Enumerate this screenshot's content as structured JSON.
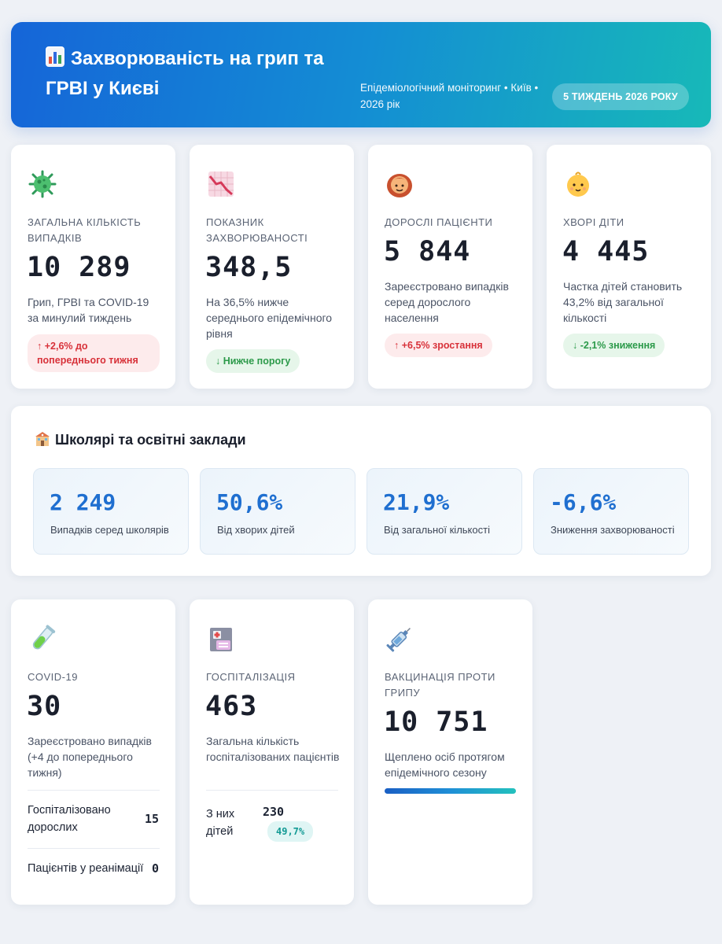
{
  "header": {
    "title": "Захворюваність на грип та ГРВІ у Києві",
    "meta": "Епідеміологічний моніторинг • Київ • 2026 рік",
    "badge": "5 ТИЖДЕНЬ 2026 РОКУ",
    "icon": "bar-chart-icon"
  },
  "top_cards": [
    {
      "icon": "virus-icon",
      "label": "Загальна кількість випадків",
      "value": "10 289",
      "desc": "Грип, ГРВІ та COVID-19 за минулий тиждень",
      "pill": "↑ +2,6% до попереднього тижня",
      "pill_color": "#d8323a"
    },
    {
      "icon": "chart-decreasing-icon",
      "label": "Показник захворюваності",
      "value": "348,5",
      "desc": "На 36,5% нижче середнього епідемічного рівня",
      "pill": "↓ Нижче порогу",
      "pill_color": "#2c9a4a"
    },
    {
      "icon": "woman-icon",
      "label": "Дорослі пацієнти",
      "value": "5 844",
      "desc": "Зареєстровано випадків серед дорослого населення",
      "pill": "↑ +6,5% зростання",
      "pill_color": "#d8323a"
    },
    {
      "icon": "baby-icon",
      "label": "Хворі діти",
      "value": "4 445",
      "desc": "Частка дітей становить 43,2% від загальної кількості",
      "pill": "↓ -2,1% зниження",
      "pill_color": "#2c9a4a"
    }
  ],
  "school": {
    "title": "Школярі та освітні заклади",
    "icon": "school-icon",
    "stats": [
      {
        "value": "2 249",
        "label": "Випадків серед школярів"
      },
      {
        "value": "50,6%",
        "label": "Від хворих дітей"
      },
      {
        "value": "21,9%",
        "label": "Від загальної кількості"
      },
      {
        "value": "-6,6%",
        "label": "Зниження захворюваності"
      }
    ]
  },
  "covid": {
    "icon": "test-tube-icon",
    "label": "COVID-19",
    "value": "30",
    "desc": "Зареєстровано випадків (+4 до попереднього тижня)",
    "rows": [
      {
        "label": "Госпіталізовано дорослих",
        "value": "15"
      },
      {
        "label": "Пацієнтів у реанімації",
        "value": "0"
      }
    ]
  },
  "hosp": {
    "icon": "hospital-icon",
    "label": "Госпіталізація",
    "value": "463",
    "desc": "Загальна кількість госпіталізованих пацієнтів",
    "sub_label": "З них дітей",
    "sub_value": "230",
    "sub_pct": "49,7%"
  },
  "vacc": {
    "icon": "syringe-icon",
    "label": "Вакцинація проти грипу",
    "value": "10 751",
    "desc": "Щеплено осіб протягом епідемічного сезону",
    "progress": 1.0
  },
  "colors": {
    "accent": "#1f6fd0",
    "header_start": "#1565d8",
    "header_end": "#17b9b8",
    "up_red": "#d8323a",
    "down_green": "#2c9a4a"
  }
}
